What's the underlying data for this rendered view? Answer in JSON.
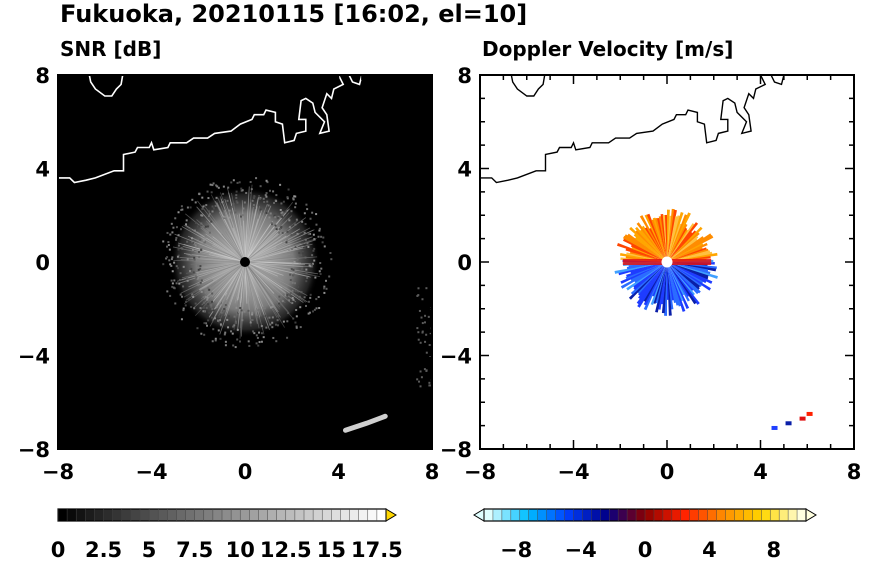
{
  "title": "Fukuoka, 20210115 [16:02, el=10]",
  "chart_data": [
    {
      "type": "heatmap",
      "title": "SNR [dB]",
      "xlim": [
        -8,
        8
      ],
      "ylim": [
        -8,
        8
      ],
      "xticks": [
        -8,
        -4,
        0,
        4,
        8
      ],
      "yticks": [
        -8,
        -4,
        0,
        4,
        8
      ],
      "tick_labels": [
        "−8",
        "−4",
        "0",
        "4",
        "8"
      ],
      "echo_center": [
        0,
        0
      ],
      "echo_radius": 3.2,
      "secondary_echo": [
        [
          4.3,
          -7.2
        ],
        [
          5.2,
          -6.9
        ],
        [
          6.0,
          -6.6
        ]
      ],
      "colorbar": {
        "levels": [
          0,
          18
        ],
        "tick_values": [
          0,
          2.5,
          5,
          7.5,
          10,
          12.5,
          15,
          17.5
        ],
        "tick_labels": [
          "0",
          "2.5",
          "5",
          "7.5",
          "10",
          "12.5",
          "15",
          "17.5"
        ],
        "colors": [
          "#000000",
          "#ffffff"
        ],
        "extend": "max",
        "extend_color": "#ffd700"
      },
      "background": "#000000",
      "coast_color": "#ffffff"
    },
    {
      "type": "heatmap",
      "title": "Doppler Velocity [m/s]",
      "xlim": [
        -8,
        8
      ],
      "ylim": [
        -8,
        8
      ],
      "xticks": [
        -8,
        -4,
        0,
        4,
        8
      ],
      "yticks": [
        -8,
        -4,
        0,
        4,
        8
      ],
      "tick_labels": [
        "−8",
        "−4",
        "0",
        "4",
        "8"
      ],
      "echo_center": [
        0,
        0
      ],
      "echo_radius": 2.1,
      "colorbar": {
        "levels": [
          -10,
          10
        ],
        "tick_values": [
          -8,
          -4,
          0,
          4,
          8
        ],
        "tick_labels": [
          "−8",
          "−4",
          "0",
          "4",
          "8"
        ],
        "colors": [
          "#e0ffff",
          "#00bfff",
          "#0040ff",
          "#00008b",
          "#8b0000",
          "#ff2000",
          "#ff8c00",
          "#ffd700",
          "#ffffe0"
        ],
        "extend": "both"
      },
      "background": "#ffffff",
      "coast_color": "#000000"
    }
  ]
}
